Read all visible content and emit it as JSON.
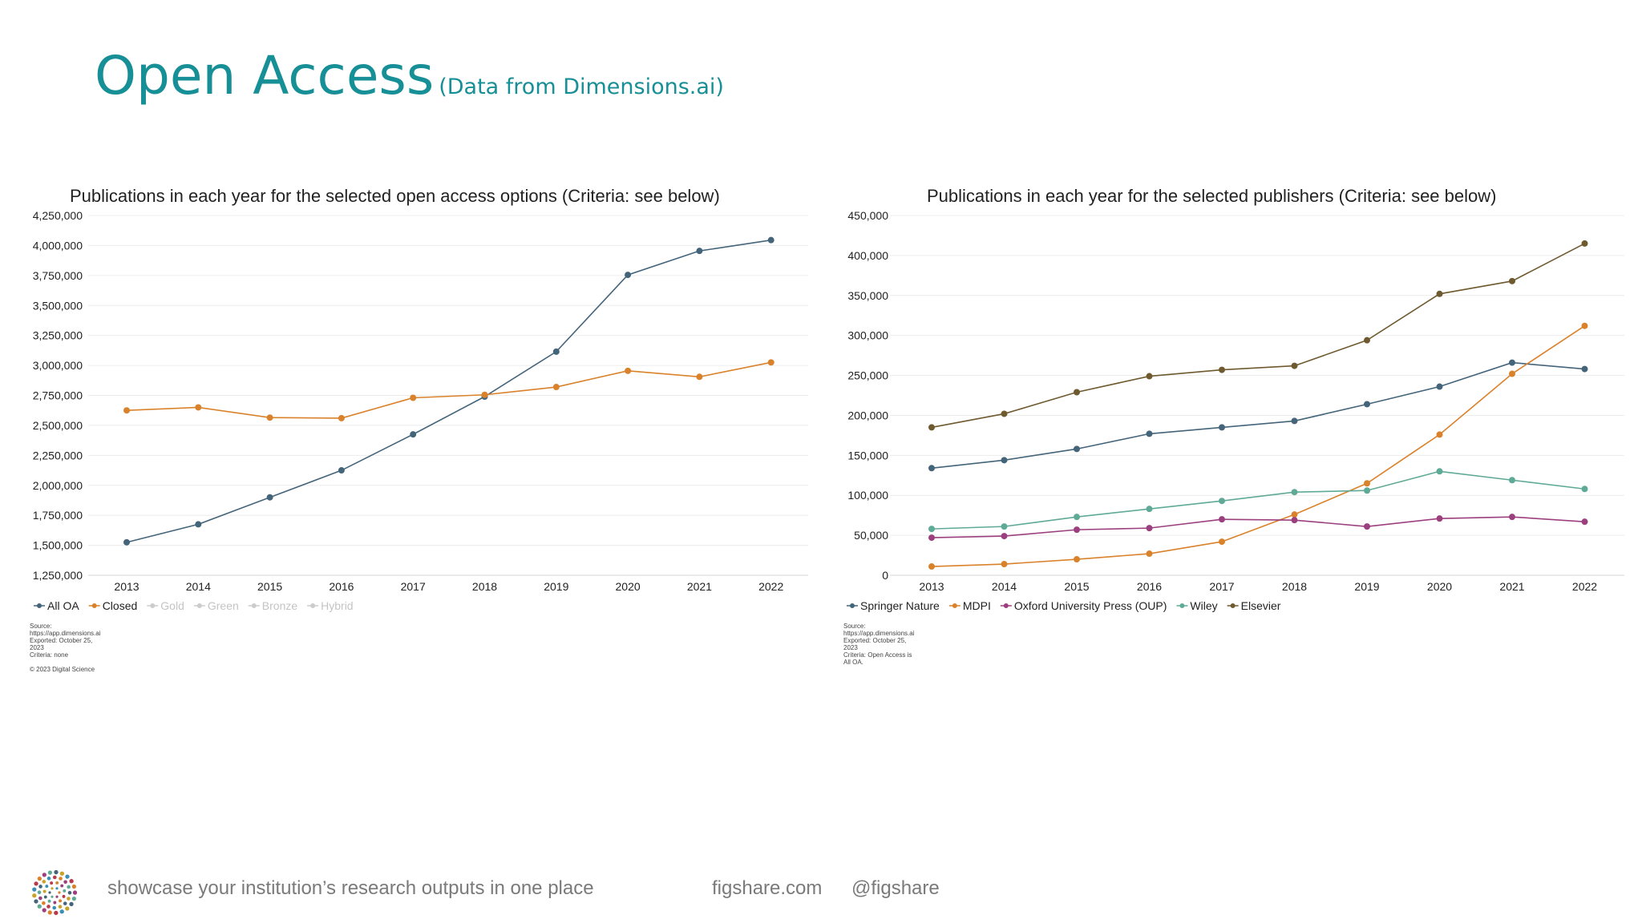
{
  "header": {
    "title": "Open Access",
    "subtitle": "(Data from Dimensions.ai)"
  },
  "chart_data": [
    {
      "type": "line",
      "title": "Publications in each year for the selected open access options (Criteria: see below)",
      "categories": [
        "2013",
        "2014",
        "2015",
        "2016",
        "2017",
        "2018",
        "2019",
        "2020",
        "2021",
        "2022"
      ],
      "ylim": [
        1250000,
        4250000
      ],
      "yticks": [
        1250000,
        1500000,
        1750000,
        2000000,
        2250000,
        2500000,
        2750000,
        3000000,
        3250000,
        3500000,
        3750000,
        4000000,
        4250000
      ],
      "ytick_labels": [
        "1,250,000",
        "1,500,000",
        "1,750,000",
        "2,000,000",
        "2,250,000",
        "2,500,000",
        "2,750,000",
        "3,000,000",
        "3,250,000",
        "3,500,000",
        "3,750,000",
        "4,000,000",
        "4,250,000"
      ],
      "series": [
        {
          "name": "All OA",
          "color": "#44647a",
          "values": [
            1525000,
            1675000,
            1900000,
            2125000,
            2425000,
            2740000,
            3115000,
            3755000,
            3955000,
            4045000
          ]
        },
        {
          "name": "Closed",
          "color": "#d9822b",
          "values": [
            2625000,
            2650000,
            2565000,
            2560000,
            2730000,
            2755000,
            2820000,
            2955000,
            2905000,
            3025000
          ]
        }
      ],
      "legend": [
        {
          "name": "All OA",
          "color": "#44647a",
          "active": true
        },
        {
          "name": "Closed",
          "color": "#d9822b",
          "active": true
        },
        {
          "name": "Gold",
          "color": "#cccccc",
          "active": false
        },
        {
          "name": "Green",
          "color": "#cccccc",
          "active": false
        },
        {
          "name": "Bronze",
          "color": "#cccccc",
          "active": false
        },
        {
          "name": "Hybrid",
          "color": "#cccccc",
          "active": false
        }
      ],
      "source_note": "Source:\nhttps://app.dimensions.ai\nExported: October 25,\n2023\nCriteria: none\n\n© 2023 Digital Science"
    },
    {
      "type": "line",
      "title": "Publications in each year for the selected publishers (Criteria: see below)",
      "categories": [
        "2013",
        "2014",
        "2015",
        "2016",
        "2017",
        "2018",
        "2019",
        "2020",
        "2021",
        "2022"
      ],
      "ylim": [
        0,
        450000
      ],
      "yticks": [
        0,
        50000,
        100000,
        150000,
        200000,
        250000,
        300000,
        350000,
        400000,
        450000
      ],
      "ytick_labels": [
        "0",
        "50,000",
        "100,000",
        "150,000",
        "200,000",
        "250,000",
        "300,000",
        "350,000",
        "400,000",
        "450,000"
      ],
      "series": [
        {
          "name": "Springer Nature",
          "color": "#44647a",
          "values": [
            134000,
            144000,
            158000,
            177000,
            185000,
            193000,
            214000,
            236000,
            266000,
            258000
          ]
        },
        {
          "name": "MDPI",
          "color": "#d9822b",
          "values": [
            11000,
            14000,
            20000,
            27000,
            42000,
            76000,
            115000,
            176000,
            252000,
            312000
          ]
        },
        {
          "name": "Oxford University Press (OUP)",
          "color": "#9c3f7e",
          "values": [
            47000,
            49000,
            57000,
            59000,
            70000,
            69000,
            61000,
            71000,
            73000,
            67000
          ]
        },
        {
          "name": "Wiley",
          "color": "#5faa96",
          "values": [
            58000,
            61000,
            73000,
            83000,
            93000,
            104000,
            106000,
            130000,
            119000,
            108000
          ]
        },
        {
          "name": "Elsevier",
          "color": "#6e5a2e",
          "values": [
            185000,
            202000,
            229000,
            249000,
            257000,
            262000,
            294000,
            352000,
            368000,
            415000
          ]
        }
      ],
      "legend": [
        {
          "name": "Springer Nature",
          "color": "#44647a",
          "active": true
        },
        {
          "name": "MDPI",
          "color": "#d9822b",
          "active": true
        },
        {
          "name": "Oxford University Press (OUP)",
          "color": "#9c3f7e",
          "active": true
        },
        {
          "name": "Wiley",
          "color": "#5faa96",
          "active": true
        },
        {
          "name": "Elsevier",
          "color": "#6e5a2e",
          "active": true
        }
      ],
      "source_note": "Source:\nhttps://app.dimensions.ai\nExported: October 25,\n2023\nCriteria: Open Access is\nAll OA."
    }
  ],
  "footer": {
    "tagline": "showcase your institution’s research outputs in one place",
    "website": "figshare.com",
    "handle": "@figshare"
  }
}
